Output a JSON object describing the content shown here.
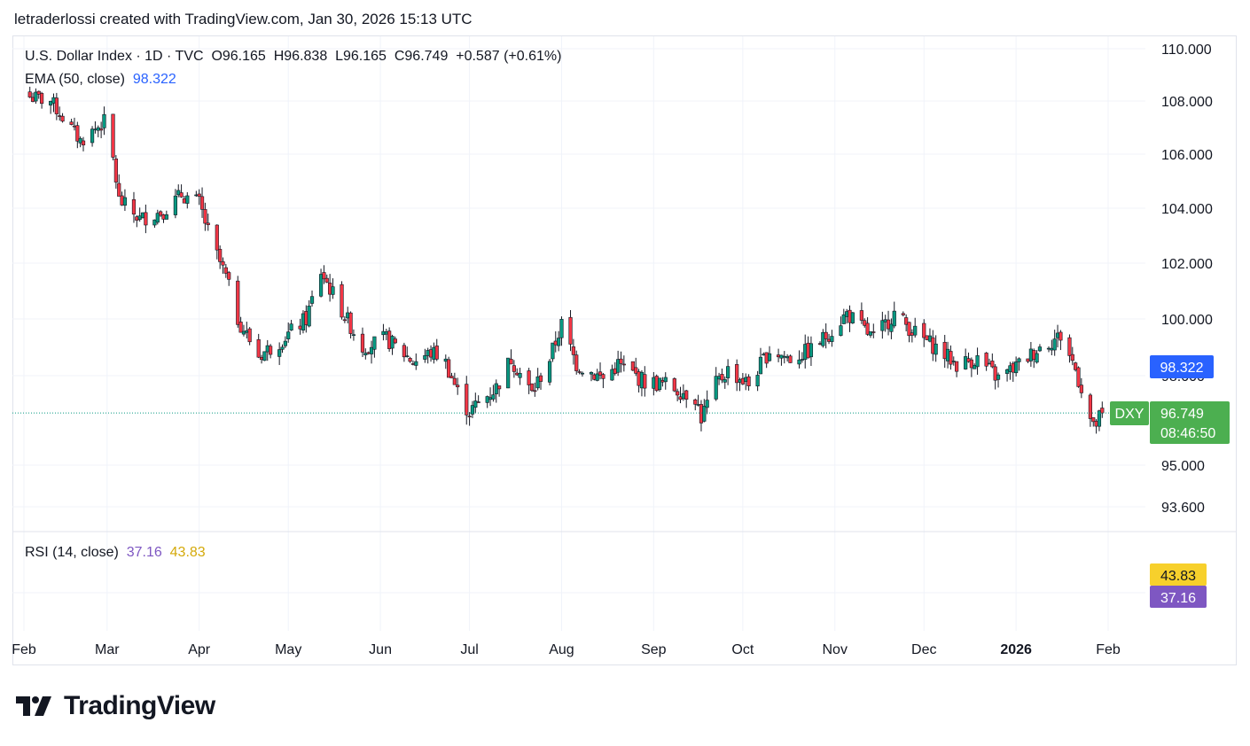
{
  "header": {
    "credit": "letraderlossi created with TradingView.com, Jan 30, 2026 15:13 UTC"
  },
  "legend": {
    "title": "U.S. Dollar Index · 1D · TVC",
    "open": "O96.165",
    "high": "H96.838",
    "low": "L96.165",
    "close": "C96.749",
    "change": "+0.587 (+0.61%)",
    "ema_label": "EMA (50, close)",
    "ema_value": "98.322",
    "rsi_label": "RSI (14, close)",
    "rsi_value": "37.16",
    "rsi_ma_value": "43.83"
  },
  "colors": {
    "up": "#089981",
    "down": "#f23645",
    "ema": "#2962ff",
    "rsi": "#7e57c2",
    "rsi_ma": "#f7d02c",
    "last_price": "#4caf50",
    "grid": "#f0f3fa"
  },
  "price_axis": {
    "ticks": [
      "110.000",
      "108.000",
      "106.000",
      "104.000",
      "102.000",
      "100.000",
      "98.000",
      "95.000",
      "93.600"
    ]
  },
  "tags": {
    "ema": "98.322",
    "symbol": "DXY",
    "last_price": "96.749",
    "countdown": "08:46:50",
    "rsi_ma": "43.83",
    "rsi": "37.16"
  },
  "time_axis": {
    "labels": [
      "Feb",
      "Mar",
      "Apr",
      "May",
      "Jun",
      "Jul",
      "Aug",
      "Sep",
      "Oct",
      "Nov",
      "Dec",
      "2026",
      "Feb"
    ]
  },
  "brand": {
    "name": "TradingView",
    "logo_icon": "tradingview-logo-icon"
  },
  "chart_data": {
    "type": "candlestick",
    "symbol": "DXY",
    "title": "U.S. Dollar Index · 1D · TVC",
    "y_ticks": [
      110,
      108,
      106,
      104,
      102,
      100,
      98,
      95,
      93.6
    ],
    "x_labels": [
      "Feb",
      "Mar",
      "Apr",
      "May",
      "Jun",
      "Jul",
      "Aug",
      "Sep",
      "Oct",
      "Nov",
      "Dec",
      "2026",
      "Feb"
    ],
    "ema_50": 98.322,
    "last_close": 96.749,
    "rsi_14": 37.16,
    "rsi_ma": 43.83,
    "close_path": [
      {
        "date": "2025-02-01",
        "close": 108.2
      },
      {
        "date": "2025-02-10",
        "close": 108.0
      },
      {
        "date": "2025-02-20",
        "close": 106.5
      },
      {
        "date": "2025-03-01",
        "close": 107.3
      },
      {
        "date": "2025-03-05",
        "close": 104.3
      },
      {
        "date": "2025-03-12",
        "close": 103.6
      },
      {
        "date": "2025-03-20",
        "close": 103.9
      },
      {
        "date": "2025-03-26",
        "close": 104.5
      },
      {
        "date": "2025-04-01",
        "close": 104.2
      },
      {
        "date": "2025-04-05",
        "close": 102.8
      },
      {
        "date": "2025-04-10",
        "close": 101.5
      },
      {
        "date": "2025-04-14",
        "close": 100.0
      },
      {
        "date": "2025-04-21",
        "close": 98.7
      },
      {
        "date": "2025-04-28",
        "close": 99.2
      },
      {
        "date": "2025-05-07",
        "close": 100.0
      },
      {
        "date": "2025-05-12",
        "close": 101.7
      },
      {
        "date": "2025-05-18",
        "close": 100.5
      },
      {
        "date": "2025-05-26",
        "close": 99.0
      },
      {
        "date": "2025-06-03",
        "close": 99.3
      },
      {
        "date": "2025-06-12",
        "close": 98.5
      },
      {
        "date": "2025-06-18",
        "close": 98.8
      },
      {
        "date": "2025-06-22",
        "close": 98.7
      },
      {
        "date": "2025-06-28",
        "close": 97.2
      },
      {
        "date": "2025-07-01",
        "close": 96.8
      },
      {
        "date": "2025-07-10",
        "close": 97.6
      },
      {
        "date": "2025-07-15",
        "close": 98.6
      },
      {
        "date": "2025-07-22",
        "close": 97.4
      },
      {
        "date": "2025-07-28",
        "close": 98.6
      },
      {
        "date": "2025-08-01",
        "close": 99.8
      },
      {
        "date": "2025-08-06",
        "close": 98.4
      },
      {
        "date": "2025-08-15",
        "close": 97.9
      },
      {
        "date": "2025-08-20",
        "close": 98.4
      },
      {
        "date": "2025-08-29",
        "close": 97.8
      },
      {
        "date": "2025-09-05",
        "close": 97.7
      },
      {
        "date": "2025-09-15",
        "close": 97.3
      },
      {
        "date": "2025-09-17",
        "close": 96.6
      },
      {
        "date": "2025-09-22",
        "close": 97.7
      },
      {
        "date": "2025-09-26",
        "close": 98.2
      },
      {
        "date": "2025-10-03",
        "close": 97.7
      },
      {
        "date": "2025-10-10",
        "close": 98.9
      },
      {
        "date": "2025-10-17",
        "close": 98.6
      },
      {
        "date": "2025-10-24",
        "close": 98.9
      },
      {
        "date": "2025-11-01",
        "close": 99.7
      },
      {
        "date": "2025-11-05",
        "close": 100.2
      },
      {
        "date": "2025-11-14",
        "close": 99.3
      },
      {
        "date": "2025-11-21",
        "close": 100.2
      },
      {
        "date": "2025-11-28",
        "close": 99.5
      },
      {
        "date": "2025-12-05",
        "close": 99.0
      },
      {
        "date": "2025-12-12",
        "close": 98.4
      },
      {
        "date": "2025-12-19",
        "close": 98.6
      },
      {
        "date": "2025-12-26",
        "close": 97.9
      },
      {
        "date": "2026-01-02",
        "close": 98.4
      },
      {
        "date": "2026-01-09",
        "close": 99.0
      },
      {
        "date": "2026-01-16",
        "close": 99.4
      },
      {
        "date": "2026-01-20",
        "close": 98.5
      },
      {
        "date": "2026-01-23",
        "close": 97.6
      },
      {
        "date": "2026-01-27",
        "close": 96.2
      },
      {
        "date": "2026-01-30",
        "close": 96.749
      }
    ]
  }
}
